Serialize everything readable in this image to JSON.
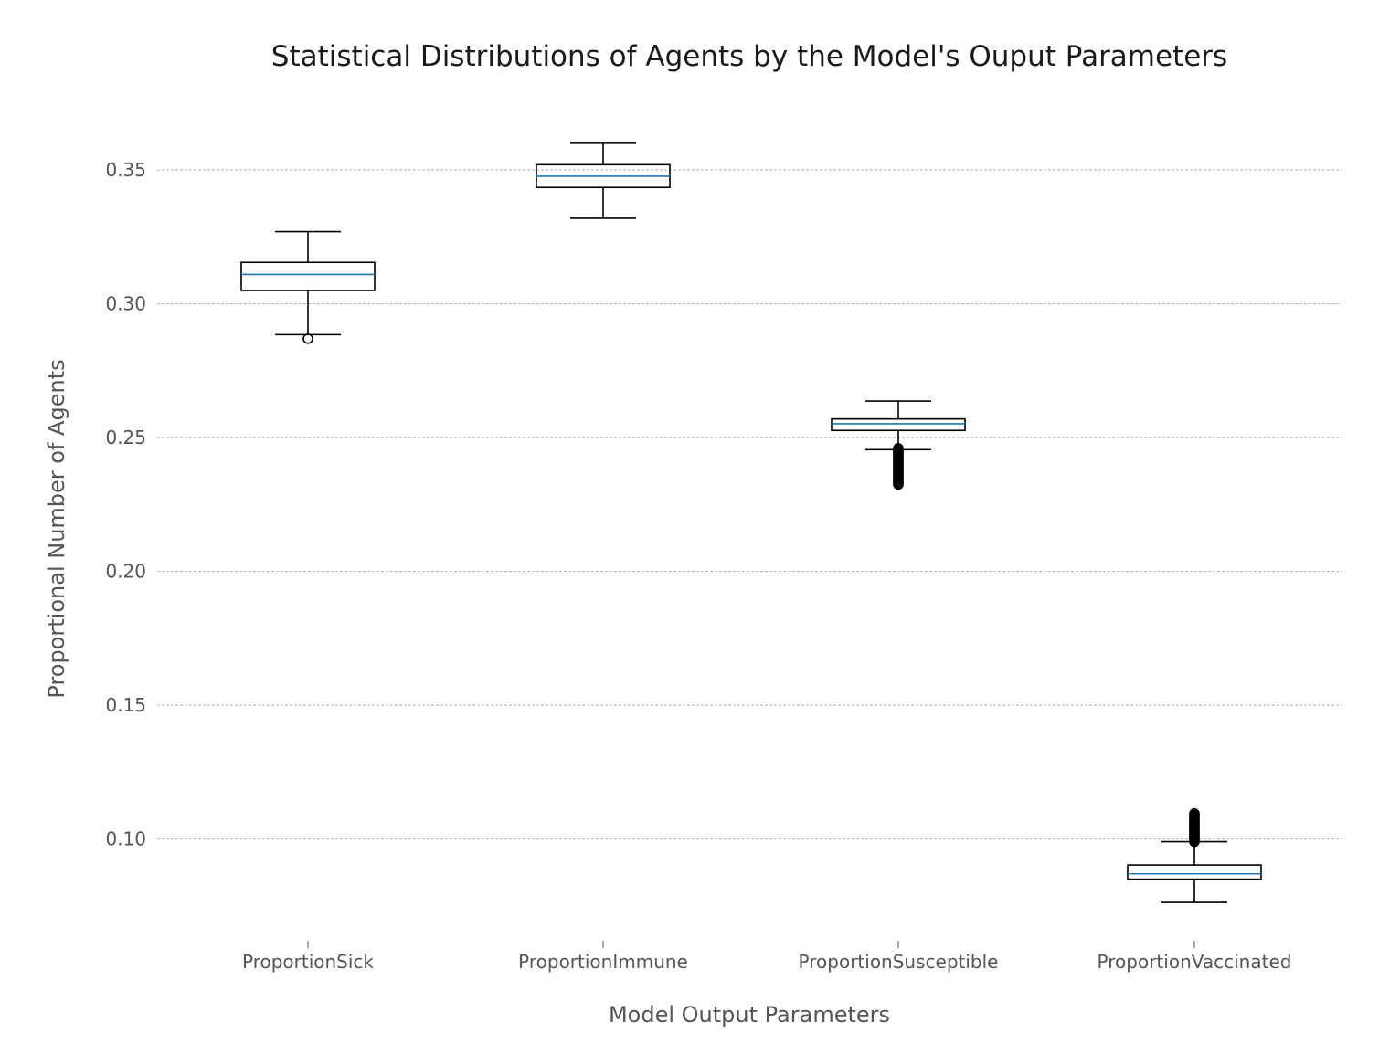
{
  "chart_data": {
    "type": "box",
    "title": "Statistical Distributions of Agents by the Model's Ouput Parameters",
    "xlabel": "Model Output Parameters",
    "ylabel": "Proportional Number of Agents",
    "ylim": [
      0.062,
      0.376
    ],
    "y_ticks": [
      0.1,
      0.15,
      0.2,
      0.25,
      0.3,
      0.35
    ],
    "y_tick_labels": [
      "0.10",
      "0.15",
      "0.20",
      "0.25",
      "0.30",
      "0.35"
    ],
    "grid": "horizontal dashed",
    "colors": {
      "box": "#000000",
      "median": "#1f77b4",
      "grid": "#b0b0b0",
      "tick_text": "#555555"
    },
    "categories": [
      "ProportionSick",
      "ProportionImmune",
      "ProportionSusceptible",
      "ProportionVaccinated"
    ],
    "boxes": [
      {
        "whisker_low": 0.2885,
        "q1": 0.305,
        "median": 0.311,
        "q3": 0.3155,
        "whisker_high": 0.327,
        "outliers": [
          0.287
        ]
      },
      {
        "whisker_low": 0.332,
        "q1": 0.3435,
        "median": 0.3477,
        "q3": 0.352,
        "whisker_high": 0.36,
        "outliers": []
      },
      {
        "whisker_low": 0.2455,
        "q1": 0.2527,
        "median": 0.2552,
        "q3": 0.257,
        "whisker_high": 0.2637,
        "outliers": [
          0.246,
          0.2455,
          0.245,
          0.2445,
          0.244,
          0.2435,
          0.243,
          0.2425,
          0.242,
          0.2415,
          0.241,
          0.2405,
          0.24,
          0.2395,
          0.239,
          0.2385,
          0.238,
          0.2375,
          0.237,
          0.2365,
          0.236,
          0.2355,
          0.235,
          0.2345,
          0.234,
          0.2335,
          0.233,
          0.2325
        ]
      },
      {
        "whisker_low": 0.0763,
        "q1": 0.085,
        "median": 0.087,
        "q3": 0.0903,
        "whisker_high": 0.099,
        "outliers": [
          0.099,
          0.0995,
          0.1,
          0.1005,
          0.101,
          0.1015,
          0.102,
          0.1025,
          0.103,
          0.1035,
          0.104,
          0.1045,
          0.105,
          0.1055,
          0.106,
          0.1065,
          0.107,
          0.1075,
          0.108,
          0.1085,
          0.109,
          0.1095
        ]
      }
    ]
  }
}
